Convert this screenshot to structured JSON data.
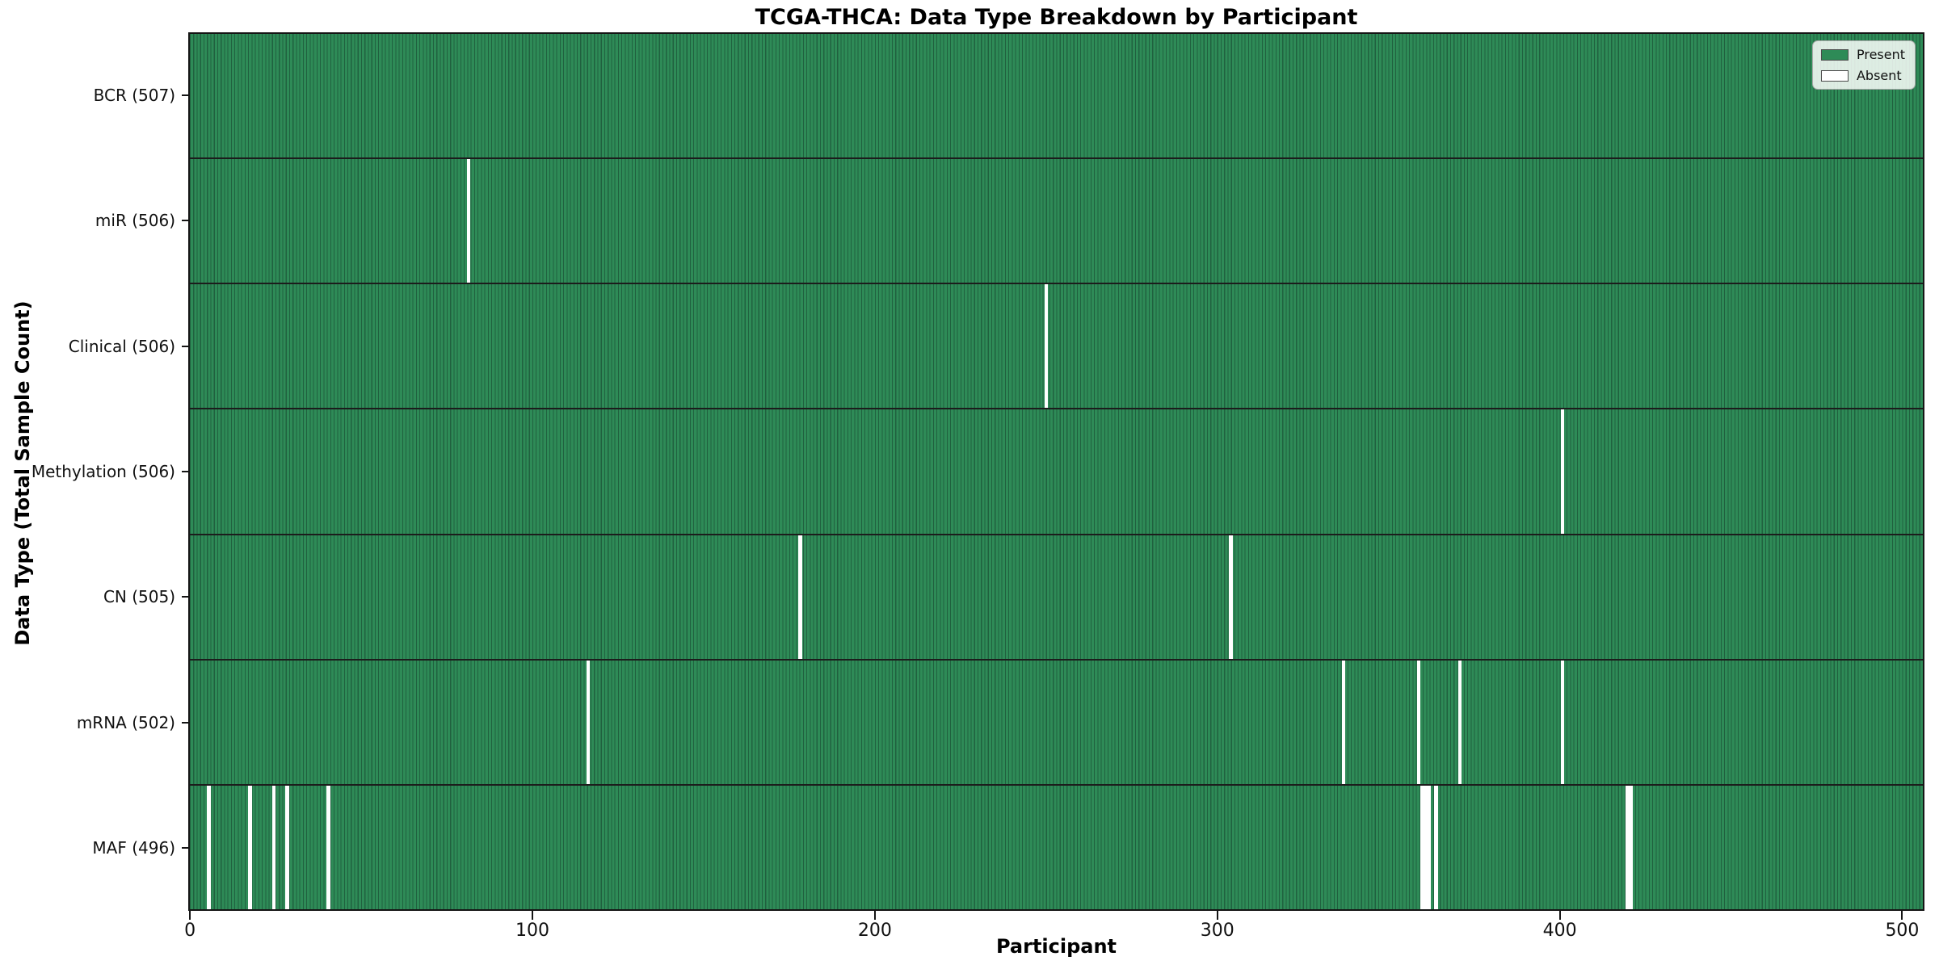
{
  "title": "TCGA-THCA: Data Type Breakdown by Participant",
  "xlabel": "Participant",
  "ylabel": "Data Type (Total Sample Count)",
  "legend": {
    "present_label": "Present",
    "absent_label": "Absent"
  },
  "colors": {
    "present": "#2e8b57",
    "absent": "#ffffff",
    "bar_edge": "#20613f",
    "row_separator": "#1c1c1c"
  },
  "chart_data": {
    "type": "heatmap",
    "title": "TCGA-THCA: Data Type Breakdown by Participant",
    "xlabel": "Participant",
    "ylabel": "Data Type (Total Sample Count)",
    "n_participants": 507,
    "x_ticks": [
      0,
      100,
      200,
      300,
      400,
      500
    ],
    "xlim": [
      0,
      507
    ],
    "legend_entries": [
      "Present",
      "Absent"
    ],
    "legend_position": "upper right",
    "grid": false,
    "rows": [
      {
        "label": "BCR (507)",
        "data_type": "BCR",
        "present_count": 507,
        "absent_participants": []
      },
      {
        "label": "miR (506)",
        "data_type": "miR",
        "present_count": 506,
        "absent_participants": [
          81
        ]
      },
      {
        "label": "Clinical (506)",
        "data_type": "Clinical",
        "present_count": 506,
        "absent_participants": [
          250
        ]
      },
      {
        "label": "Methylation (506)",
        "data_type": "Methylation",
        "present_count": 506,
        "absent_participants": [
          401
        ]
      },
      {
        "label": "CN (505)",
        "data_type": "CN",
        "present_count": 505,
        "absent_participants": [
          178,
          304
        ]
      },
      {
        "label": "mRNA (502)",
        "data_type": "mRNA",
        "present_count": 502,
        "absent_participants": [
          116,
          337,
          359,
          371,
          401
        ]
      },
      {
        "label": "MAF (496)",
        "data_type": "MAF",
        "present_count": 496,
        "absent_participants": [
          5,
          17,
          24,
          28,
          40,
          360,
          361,
          362,
          364,
          420,
          421
        ]
      }
    ]
  }
}
